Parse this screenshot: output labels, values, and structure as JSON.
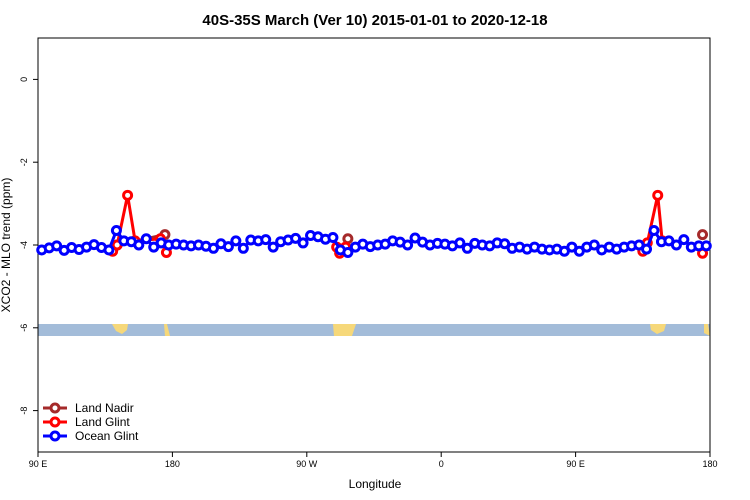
{
  "chart_data": {
    "type": "line",
    "title": "40S-35S March (Ver 10)   2015-01-01 to 2020-12-18",
    "x_label": "Longitude",
    "y_label": "XCO2 - MLO trend (ppm)",
    "xlim": [
      90,
      540
    ],
    "ylim": [
      -9,
      1
    ],
    "xticks": [
      {
        "value": 90,
        "label": "90 E"
      },
      180,
      {
        "value": 270,
        "label": "90 W"
      },
      {
        "value": 360,
        "label": "0"
      },
      {
        "value": 450,
        "label": "90 E"
      },
      {
        "value": 540,
        "label": "180"
      }
    ],
    "yticks": [
      0,
      -2,
      -4,
      -6,
      -8
    ],
    "legend": "bottom-left",
    "series": [
      {
        "name": "Land Nadir",
        "color": "#a52a2a",
        "x": [
          143,
          175,
          null,
          297.5,
          null,
          535
        ],
        "values": [
          -4.0,
          -3.75,
          null,
          -3.85,
          null,
          -3.75
        ]
      },
      {
        "name": "Land Glint",
        "color": "#ff0000",
        "x": [
          140,
          143,
          150,
          155,
          172,
          176,
          null,
          290,
          292,
          296,
          null,
          495,
          498,
          505,
          508,
          null,
          535
        ],
        "values": [
          -4.15,
          -4.0,
          -2.8,
          -3.9,
          -3.85,
          -4.18,
          null,
          -4.05,
          -4.2,
          -4.05,
          null,
          -4.15,
          -3.95,
          -2.8,
          -3.9,
          null,
          -4.2
        ]
      },
      {
        "name": "Ocean Glint",
        "color": "#0000ff",
        "x": [
          92.5,
          97.5,
          102.5,
          107.5,
          112.5,
          117.5,
          122.5,
          127.5,
          132.5,
          137.5,
          142.5,
          147.5,
          152.5,
          157.5,
          162.5,
          167.5,
          172.5,
          177.5,
          182.5,
          187.5,
          192.5,
          197.5,
          202.5,
          207.5,
          212.5,
          217.5,
          222.5,
          227.5,
          232.5,
          237.5,
          242.5,
          247.5,
          252.5,
          257.5,
          262.5,
          267.5,
          272.5,
          277.5,
          282.5,
          287.5,
          292.5,
          297.5,
          302.5,
          307.5,
          312.5,
          317.5,
          322.5,
          327.5,
          332.5,
          337.5,
          342.5,
          347.5,
          352.5,
          357.5,
          362.5,
          367.5,
          372.5,
          377.5,
          382.5,
          387.5,
          392.5,
          397.5,
          402.5,
          407.5,
          412.5,
          417.5,
          422.5,
          427.5,
          432.5,
          437.5,
          442.5,
          447.5,
          452.5,
          457.5,
          462.5,
          467.5,
          472.5,
          477.5,
          482.5,
          487.5,
          492.5,
          497.5,
          502.5,
          507.5,
          512.5,
          517.5,
          522.5,
          527.5,
          532.5,
          537.5
        ],
        "values": [
          -4.12,
          -4.07,
          -4.02,
          -4.13,
          -4.06,
          -4.11,
          -4.05,
          -3.99,
          -4.06,
          -4.12,
          -3.65,
          -3.9,
          -3.92,
          -4.0,
          -3.85,
          -4.05,
          -3.95,
          -4.0,
          -3.98,
          -4.0,
          -4.02,
          -4.0,
          -4.03,
          -4.08,
          -3.97,
          -4.04,
          -3.9,
          -4.08,
          -3.88,
          -3.9,
          -3.87,
          -4.05,
          -3.92,
          -3.88,
          -3.84,
          -3.95,
          -3.77,
          -3.8,
          -3.86,
          -3.82,
          -4.12,
          -4.18,
          -4.05,
          -3.98,
          -4.04,
          -4.0,
          -3.98,
          -3.9,
          -3.93,
          -4.0,
          -3.83,
          -3.93,
          -4.0,
          -3.96,
          -3.98,
          -4.02,
          -3.95,
          -4.08,
          -3.96,
          -4.0,
          -4.02,
          -3.95,
          -3.97,
          -4.08,
          -4.05,
          -4.1,
          -4.05,
          -4.1,
          -4.12,
          -4.1,
          -4.15,
          -4.05,
          -4.15,
          -4.05,
          -4.0,
          -4.12,
          -4.05,
          -4.1,
          -4.05,
          -4.02,
          -4.0,
          -4.1,
          -3.65,
          -3.92,
          -3.9,
          -4.0,
          -3.87,
          -4.05,
          -4.02,
          -4.02
        ]
      }
    ]
  }
}
